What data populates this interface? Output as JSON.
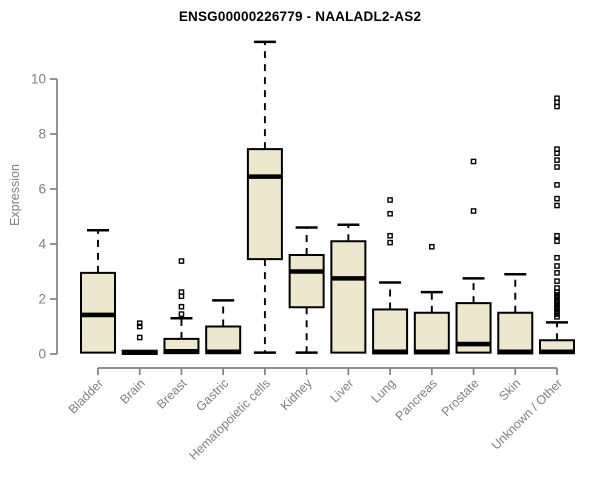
{
  "figure": {
    "title": "ENSG00000226779 - NAALADL2-AS2",
    "y_axis": {
      "label": "Expression",
      "ticks": [
        0,
        2,
        4,
        6,
        8,
        10
      ]
    },
    "colors": {
      "background": "#FFFFFF",
      "box_fill": "#EDE7CE",
      "box_border": "#000000",
      "median": "#000000",
      "whisker": "#000000",
      "outlier": "#000000",
      "axis": "#808080",
      "tick_label": "#808080",
      "title": "#000000"
    }
  },
  "chart_data": {
    "type": "boxplot",
    "title": "ENSG00000226779 - NAALADL2-AS2",
    "xlabel": "",
    "ylabel": "Expression",
    "ylim": [
      0,
      11.6
    ],
    "yticks": [
      0,
      2,
      4,
      6,
      8,
      10
    ],
    "grid": false,
    "legend": "none",
    "categories": [
      "Bladder",
      "Brain",
      "Breast",
      "Gastric",
      "Hematopoietic cells",
      "Kidney",
      "Liver",
      "Lung",
      "Pancreas",
      "Prostate",
      "Skin",
      "Unknown / Other"
    ],
    "series": [
      {
        "name": "Bladder",
        "whisker_low": null,
        "q1": 0.05,
        "median": 1.42,
        "q3": 2.95,
        "whisker_high": 4.5,
        "outliers": []
      },
      {
        "name": "Brain",
        "whisker_low": null,
        "q1": 0.0,
        "median": 0.06,
        "q3": 0.12,
        "whisker_high": null,
        "outliers": [
          0.6,
          1.0,
          1.12
        ]
      },
      {
        "name": "Breast",
        "whisker_low": null,
        "q1": 0.03,
        "median": 0.1,
        "q3": 0.55,
        "whisker_high": 1.3,
        "outliers": [
          1.45,
          1.72,
          2.1,
          2.25,
          3.38
        ]
      },
      {
        "name": "Gastric",
        "whisker_low": null,
        "q1": 0.03,
        "median": 0.08,
        "q3": 1.0,
        "whisker_high": 1.95,
        "outliers": []
      },
      {
        "name": "Hematopoietic cells",
        "whisker_low": 0.05,
        "q1": 3.45,
        "median": 6.45,
        "q3": 7.45,
        "whisker_high": 11.35,
        "outliers": []
      },
      {
        "name": "Kidney",
        "whisker_low": 0.05,
        "q1": 1.7,
        "median": 3.0,
        "q3": 3.6,
        "whisker_high": 4.6,
        "outliers": []
      },
      {
        "name": "Liver",
        "whisker_low": null,
        "q1": 0.05,
        "median": 2.75,
        "q3": 4.1,
        "whisker_high": 4.7,
        "outliers": []
      },
      {
        "name": "Lung",
        "whisker_low": null,
        "q1": 0.02,
        "median": 0.08,
        "q3": 1.62,
        "whisker_high": 2.6,
        "outliers": [
          4.05,
          4.3,
          5.1,
          5.6
        ]
      },
      {
        "name": "Pancreas",
        "whisker_low": null,
        "q1": 0.02,
        "median": 0.08,
        "q3": 1.5,
        "whisker_high": 2.25,
        "outliers": [
          3.9
        ]
      },
      {
        "name": "Prostate",
        "whisker_low": null,
        "q1": 0.05,
        "median": 0.36,
        "q3": 1.85,
        "whisker_high": 2.75,
        "outliers": [
          5.2,
          7.0
        ]
      },
      {
        "name": "Skin",
        "whisker_low": null,
        "q1": 0.02,
        "median": 0.08,
        "q3": 1.5,
        "whisker_high": 2.9,
        "outliers": []
      },
      {
        "name": "Unknown / Other",
        "whisker_low": null,
        "q1": 0.03,
        "median": 0.08,
        "q3": 0.5,
        "whisker_high": 1.15,
        "outliers": [
          1.35,
          1.45,
          1.55,
          1.65,
          1.75,
          1.85,
          1.95,
          2.05,
          2.15,
          2.25,
          2.4,
          2.65,
          2.95,
          3.2,
          3.5,
          4.1,
          4.3,
          5.4,
          5.65,
          6.15,
          6.8,
          7.05,
          7.3,
          7.45,
          9.0,
          9.15,
          9.3
        ]
      }
    ]
  }
}
